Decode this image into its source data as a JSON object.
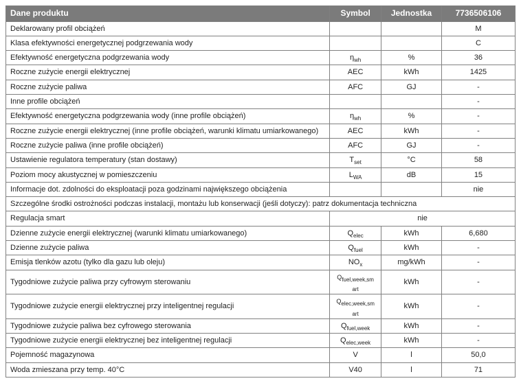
{
  "headers": {
    "c1": "Dane produktu",
    "c2": "Symbol",
    "c3": "Jednostka",
    "c4": "7736506106"
  },
  "rows": [
    {
      "c1": "Deklarowany profil obciążeń",
      "c2": "",
      "c3": "",
      "c4": "M"
    },
    {
      "c1": "Klasa efektywności energetycznej podgrzewania wody",
      "c2": "",
      "c3": "",
      "c4": "C"
    },
    {
      "c1": "Efektywność energetyczna podgrzewania wody",
      "c2": "η<sub>wh</sub>",
      "c3": "%",
      "c4": "36"
    },
    {
      "c1": "Roczne zużycie energii elektrycznej",
      "c2": "AEC",
      "c3": "kWh",
      "c4": "1425"
    },
    {
      "c1": "Roczne zużycie paliwa",
      "c2": "AFC",
      "c3": "GJ",
      "c4": "-"
    },
    {
      "c1": "Inne profile obciążeń",
      "c2": "",
      "c3": "",
      "c4": "-"
    },
    {
      "c1": "Efektywność energetyczna podgrzewania wody (inne profile obciążeń)",
      "c2": "η<sub>wh</sub>",
      "c3": "%",
      "c4": "-"
    },
    {
      "c1": "Roczne zużycie energii elektrycznej (inne profile obciążeń, warunki klimatu umiarkowanego)",
      "c2": "AEC",
      "c3": "kWh",
      "c4": "-"
    },
    {
      "c1": "Roczne zużycie paliwa (inne profile obciążeń)",
      "c2": "AFC",
      "c3": "GJ",
      "c4": "-"
    },
    {
      "c1": "Ustawienie regulatora temperatury (stan dostawy)",
      "c2": "T<sub>set</sub>",
      "c3": "°C",
      "c4": "58"
    },
    {
      "c1": "Poziom mocy akustycznej w pomieszczeniu",
      "c2": "L<sub>WA</sub>",
      "c3": "dB",
      "c4": "15"
    },
    {
      "c1": "Informacje dot. zdolności do eksploatacji poza godzinami największego obciążenia",
      "c2": "",
      "c3": "",
      "c4": "nie"
    },
    {
      "c1": "Szczególne środki ostrożności podczas instalacji, montażu lub konserwacji (jeśli dotyczy): patrz dokumentacja techniczna",
      "span": 4
    },
    {
      "c1": "Regulacja smart",
      "c2_span3": "nie"
    },
    {
      "c1": "Dzienne zużycie energii elektrycznej (warunki klimatu umiarkowanego)",
      "c2": "Q<sub>elec</sub>",
      "c3": "kWh",
      "c4": "6,680"
    },
    {
      "c1": "Dzienne zużycie paliwa",
      "c2": "Q<sub>fuel</sub>",
      "c3": "kWh",
      "c4": "-"
    },
    {
      "c1": "Emisja tlenków azotu (tylko dla gazu lub oleju)",
      "c2": "NO<sub>x</sub>",
      "c3": "mg/kWh",
      "c4": "-"
    },
    {
      "c1": "Tygodniowe zużycie paliwa przy cyfrowym sterowaniu",
      "c2": "<span class='sym-small'>Q<sub>fuel,week,sm<br>art</sub></span>",
      "c3": "kWh",
      "c4": "-"
    },
    {
      "c1": "Tygodniowe zużycie energii elektrycznej przy inteligentnej regulacji",
      "c2": "<span class='sym-small'>Q<sub>elec,week,sm<br>art</sub></span>",
      "c3": "kWh",
      "c4": "-"
    },
    {
      "c1": "Tygodniowe zużycie paliwa bez cyfrowego sterowania",
      "c2": "Q<sub>fuel,week</sub>",
      "c3": "kWh",
      "c4": "-"
    },
    {
      "c1": "Tygodniowe zużycie energii elektrycznej bez inteligentnej regulacji",
      "c2": "Q<sub>elec,week</sub>",
      "c3": "kWh",
      "c4": "-"
    },
    {
      "c1": "Pojemność magazynowa",
      "c2": "V",
      "c3": "l",
      "c4": "50,0"
    },
    {
      "c1": "Woda zmieszana przy temp. 40°C",
      "c2": "V40",
      "c3": "l",
      "c4": "71"
    }
  ]
}
